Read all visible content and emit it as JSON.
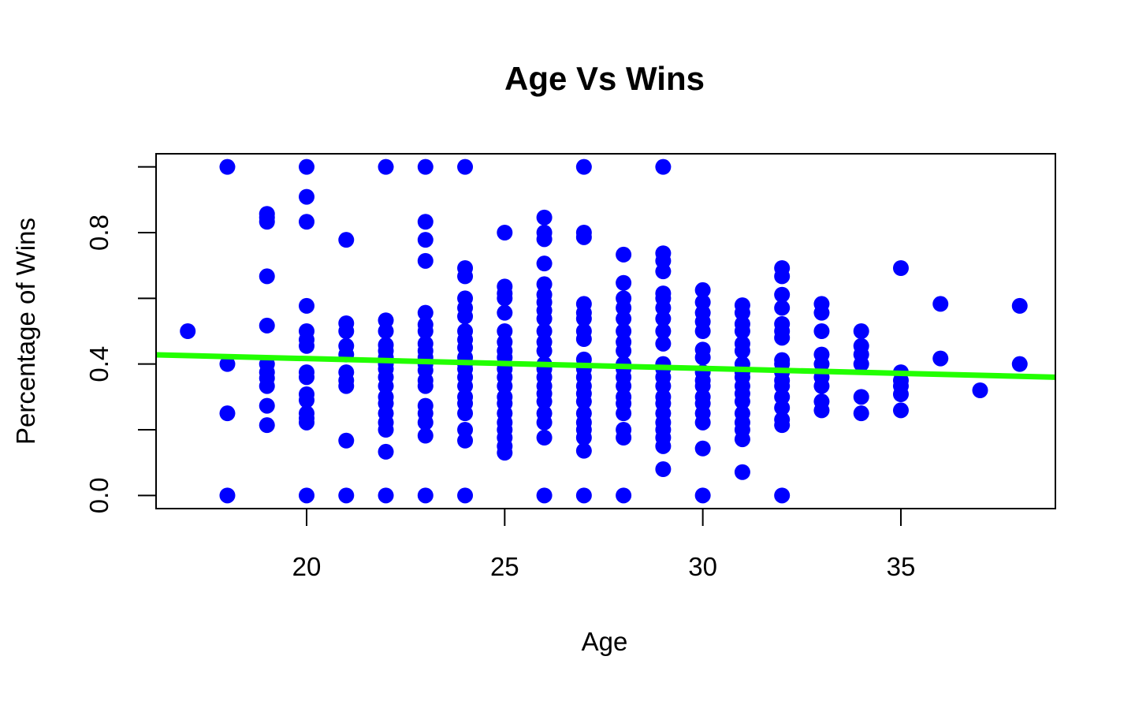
{
  "chart_data": {
    "type": "scatter",
    "title": "Age Vs Wins",
    "xlabel": "Age",
    "ylabel": "Percentage of Wins",
    "xlim": [
      16.2,
      38.9
    ],
    "ylim": [
      -0.04,
      1.04
    ],
    "xticks": [
      "20",
      "25",
      "30",
      "35"
    ],
    "yticks": [
      "0.0",
      "0.4",
      "0.8"
    ],
    "grid": false,
    "legend": "none",
    "point_color": "#0000ff",
    "line_color": "#22ff00",
    "trend_line": {
      "x": [
        16.2,
        38.9
      ],
      "y": [
        0.428,
        0.36
      ]
    },
    "points": [
      [
        17,
        0.5
      ],
      [
        18,
        1.0
      ],
      [
        18,
        0.4
      ],
      [
        18,
        0.25
      ],
      [
        18,
        0.0
      ],
      [
        19,
        0.857
      ],
      [
        19,
        0.846
      ],
      [
        19,
        0.833
      ],
      [
        19,
        0.667
      ],
      [
        19,
        0.517
      ],
      [
        19,
        0.4
      ],
      [
        19,
        0.375
      ],
      [
        19,
        0.357
      ],
      [
        19,
        0.333
      ],
      [
        19,
        0.273
      ],
      [
        19,
        0.214
      ],
      [
        20,
        1.0
      ],
      [
        20,
        0.909
      ],
      [
        20,
        0.833
      ],
      [
        20,
        0.577
      ],
      [
        20,
        0.5
      ],
      [
        20,
        0.474
      ],
      [
        20,
        0.455
      ],
      [
        20,
        0.375
      ],
      [
        20,
        0.36
      ],
      [
        20,
        0.308
      ],
      [
        20,
        0.29
      ],
      [
        20,
        0.25
      ],
      [
        20,
        0.235
      ],
      [
        20,
        0.222
      ],
      [
        20,
        0.0
      ],
      [
        21,
        0.778
      ],
      [
        21,
        0.524
      ],
      [
        21,
        0.5
      ],
      [
        21,
        0.455
      ],
      [
        21,
        0.429
      ],
      [
        21,
        0.375
      ],
      [
        21,
        0.35
      ],
      [
        21,
        0.333
      ],
      [
        21,
        0.167
      ],
      [
        21,
        0.0
      ],
      [
        22,
        1.0
      ],
      [
        22,
        0.533
      ],
      [
        22,
        0.5
      ],
      [
        22,
        0.458
      ],
      [
        22,
        0.44
      ],
      [
        22,
        0.42
      ],
      [
        22,
        0.4
      ],
      [
        22,
        0.385
      ],
      [
        22,
        0.36
      ],
      [
        22,
        0.333
      ],
      [
        22,
        0.3
      ],
      [
        22,
        0.28
      ],
      [
        22,
        0.25
      ],
      [
        22,
        0.222
      ],
      [
        22,
        0.2
      ],
      [
        22,
        0.133
      ],
      [
        22,
        0.0
      ],
      [
        23,
        1.0
      ],
      [
        23,
        0.833
      ],
      [
        23,
        0.778
      ],
      [
        23,
        0.714
      ],
      [
        23,
        0.556
      ],
      [
        23,
        0.52
      ],
      [
        23,
        0.5
      ],
      [
        23,
        0.462
      ],
      [
        23,
        0.44
      ],
      [
        23,
        0.42
      ],
      [
        23,
        0.4
      ],
      [
        23,
        0.381
      ],
      [
        23,
        0.35
      ],
      [
        23,
        0.333
      ],
      [
        23,
        0.273
      ],
      [
        23,
        0.25
      ],
      [
        23,
        0.222
      ],
      [
        23,
        0.182
      ],
      [
        23,
        0.0
      ],
      [
        24,
        1.0
      ],
      [
        24,
        0.692
      ],
      [
        24,
        0.667
      ],
      [
        24,
        0.6
      ],
      [
        24,
        0.571
      ],
      [
        24,
        0.545
      ],
      [
        24,
        0.5
      ],
      [
        24,
        0.474
      ],
      [
        24,
        0.45
      ],
      [
        24,
        0.42
      ],
      [
        24,
        0.4
      ],
      [
        24,
        0.385
      ],
      [
        24,
        0.36
      ],
      [
        24,
        0.333
      ],
      [
        24,
        0.3
      ],
      [
        24,
        0.28
      ],
      [
        24,
        0.25
      ],
      [
        24,
        0.2
      ],
      [
        24,
        0.167
      ],
      [
        24,
        0.0
      ],
      [
        25,
        0.8
      ],
      [
        25,
        0.636
      ],
      [
        25,
        0.615
      ],
      [
        25,
        0.6
      ],
      [
        25,
        0.556
      ],
      [
        25,
        0.5
      ],
      [
        25,
        0.467
      ],
      [
        25,
        0.44
      ],
      [
        25,
        0.42
      ],
      [
        25,
        0.4
      ],
      [
        25,
        0.385
      ],
      [
        25,
        0.36
      ],
      [
        25,
        0.333
      ],
      [
        25,
        0.3
      ],
      [
        25,
        0.28
      ],
      [
        25,
        0.25
      ],
      [
        25,
        0.222
      ],
      [
        25,
        0.2
      ],
      [
        25,
        0.176
      ],
      [
        25,
        0.15
      ],
      [
        25,
        0.13
      ],
      [
        26,
        0.846
      ],
      [
        26,
        0.8
      ],
      [
        26,
        0.78
      ],
      [
        26,
        0.706
      ],
      [
        26,
        0.643
      ],
      [
        26,
        0.611
      ],
      [
        26,
        0.588
      ],
      [
        26,
        0.563
      ],
      [
        26,
        0.538
      ],
      [
        26,
        0.5
      ],
      [
        26,
        0.467
      ],
      [
        26,
        0.44
      ],
      [
        26,
        0.4
      ],
      [
        26,
        0.385
      ],
      [
        26,
        0.36
      ],
      [
        26,
        0.333
      ],
      [
        26,
        0.31
      ],
      [
        26,
        0.286
      ],
      [
        26,
        0.25
      ],
      [
        26,
        0.222
      ],
      [
        26,
        0.176
      ],
      [
        26,
        0.0
      ],
      [
        27,
        1.0
      ],
      [
        27,
        0.8
      ],
      [
        27,
        0.786
      ],
      [
        27,
        0.583
      ],
      [
        27,
        0.556
      ],
      [
        27,
        0.538
      ],
      [
        27,
        0.5
      ],
      [
        27,
        0.476
      ],
      [
        27,
        0.414
      ],
      [
        27,
        0.385
      ],
      [
        27,
        0.36
      ],
      [
        27,
        0.333
      ],
      [
        27,
        0.31
      ],
      [
        27,
        0.286
      ],
      [
        27,
        0.25
      ],
      [
        27,
        0.222
      ],
      [
        27,
        0.2
      ],
      [
        27,
        0.176
      ],
      [
        27,
        0.136
      ],
      [
        27,
        0.0
      ],
      [
        28,
        0.733
      ],
      [
        28,
        0.647
      ],
      [
        28,
        0.6
      ],
      [
        28,
        0.571
      ],
      [
        28,
        0.538
      ],
      [
        28,
        0.5
      ],
      [
        28,
        0.467
      ],
      [
        28,
        0.44
      ],
      [
        28,
        0.4
      ],
      [
        28,
        0.385
      ],
      [
        28,
        0.36
      ],
      [
        28,
        0.333
      ],
      [
        28,
        0.3
      ],
      [
        28,
        0.28
      ],
      [
        28,
        0.25
      ],
      [
        28,
        0.2
      ],
      [
        28,
        0.176
      ],
      [
        28,
        0.0
      ],
      [
        29,
        1.0
      ],
      [
        29,
        0.737
      ],
      [
        29,
        0.714
      ],
      [
        29,
        0.682
      ],
      [
        29,
        0.615
      ],
      [
        29,
        0.6
      ],
      [
        29,
        0.571
      ],
      [
        29,
        0.538
      ],
      [
        29,
        0.5
      ],
      [
        29,
        0.462
      ],
      [
        29,
        0.4
      ],
      [
        29,
        0.385
      ],
      [
        29,
        0.36
      ],
      [
        29,
        0.333
      ],
      [
        29,
        0.3
      ],
      [
        29,
        0.28
      ],
      [
        29,
        0.25
      ],
      [
        29,
        0.222
      ],
      [
        29,
        0.2
      ],
      [
        29,
        0.176
      ],
      [
        29,
        0.15
      ],
      [
        29,
        0.08
      ],
      [
        30,
        0.625
      ],
      [
        30,
        0.588
      ],
      [
        30,
        0.556
      ],
      [
        30,
        0.529
      ],
      [
        30,
        0.5
      ],
      [
        30,
        0.444
      ],
      [
        30,
        0.42
      ],
      [
        30,
        0.375
      ],
      [
        30,
        0.35
      ],
      [
        30,
        0.333
      ],
      [
        30,
        0.3
      ],
      [
        30,
        0.28
      ],
      [
        30,
        0.25
      ],
      [
        30,
        0.222
      ],
      [
        30,
        0.143
      ],
      [
        30,
        0.0
      ],
      [
        31,
        0.579
      ],
      [
        31,
        0.556
      ],
      [
        31,
        0.522
      ],
      [
        31,
        0.5
      ],
      [
        31,
        0.462
      ],
      [
        31,
        0.44
      ],
      [
        31,
        0.4
      ],
      [
        31,
        0.375
      ],
      [
        31,
        0.36
      ],
      [
        31,
        0.333
      ],
      [
        31,
        0.31
      ],
      [
        31,
        0.286
      ],
      [
        31,
        0.25
      ],
      [
        31,
        0.222
      ],
      [
        31,
        0.2
      ],
      [
        31,
        0.171
      ],
      [
        31,
        0.071
      ],
      [
        32,
        0.692
      ],
      [
        32,
        0.667
      ],
      [
        32,
        0.611
      ],
      [
        32,
        0.571
      ],
      [
        32,
        0.522
      ],
      [
        32,
        0.5
      ],
      [
        32,
        0.48
      ],
      [
        32,
        0.412
      ],
      [
        32,
        0.4
      ],
      [
        32,
        0.375
      ],
      [
        32,
        0.35
      ],
      [
        32,
        0.333
      ],
      [
        32,
        0.3
      ],
      [
        32,
        0.267
      ],
      [
        32,
        0.231
      ],
      [
        32,
        0.214
      ],
      [
        32,
        0.0
      ],
      [
        33,
        0.583
      ],
      [
        33,
        0.556
      ],
      [
        33,
        0.5
      ],
      [
        33,
        0.429
      ],
      [
        33,
        0.4
      ],
      [
        33,
        0.36
      ],
      [
        33,
        0.333
      ],
      [
        33,
        0.286
      ],
      [
        33,
        0.259
      ],
      [
        34,
        0.5
      ],
      [
        34,
        0.455
      ],
      [
        34,
        0.429
      ],
      [
        34,
        0.4
      ],
      [
        34,
        0.3
      ],
      [
        34,
        0.25
      ],
      [
        35,
        0.692
      ],
      [
        35,
        0.375
      ],
      [
        35,
        0.35
      ],
      [
        35,
        0.333
      ],
      [
        35,
        0.308
      ],
      [
        35,
        0.259
      ],
      [
        36,
        0.583
      ],
      [
        36,
        0.417
      ],
      [
        37,
        0.32
      ],
      [
        38,
        0.577
      ],
      [
        38,
        0.4
      ]
    ]
  }
}
